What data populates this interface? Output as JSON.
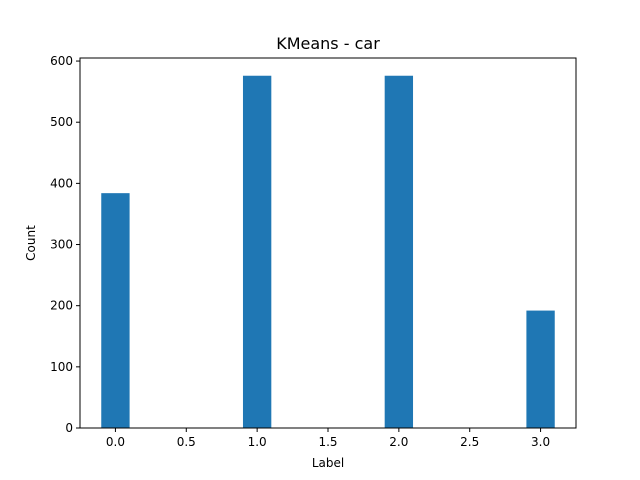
{
  "chart_data": {
    "type": "bar",
    "title": "KMeans - car",
    "xlabel": "Label",
    "ylabel": "Count",
    "x": [
      0,
      1,
      2,
      3
    ],
    "values": [
      384,
      576,
      576,
      192
    ],
    "bar_width": 0.2,
    "xlim": [
      -0.25,
      3.25
    ],
    "ylim": [
      0,
      605
    ],
    "xticks": [
      0.0,
      0.5,
      1.0,
      1.5,
      2.0,
      2.5,
      3.0
    ],
    "xtick_labels": [
      "0.0",
      "0.5",
      "1.0",
      "1.5",
      "2.0",
      "2.5",
      "3.0"
    ],
    "yticks": [
      0,
      100,
      200,
      300,
      400,
      500,
      600
    ],
    "ytick_labels": [
      "0",
      "100",
      "200",
      "300",
      "400",
      "500",
      "600"
    ],
    "bar_color": "#1f77b4",
    "grid": false,
    "legend": "none"
  }
}
